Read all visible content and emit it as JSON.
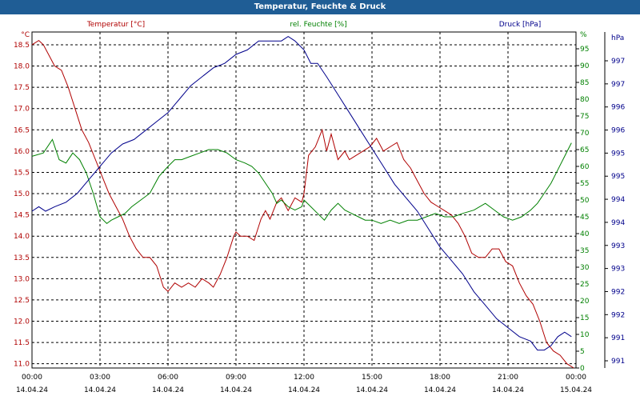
{
  "window_title": "Temperatur, Feuchte & Druck",
  "chart_data": {
    "type": "line",
    "title": "Temperatur, Feuchte & Druck",
    "grid": true,
    "x_ticks": [
      {
        "time": "00:00",
        "date": "14.04.24"
      },
      {
        "time": "03:00",
        "date": "14.04.24"
      },
      {
        "time": "06:00",
        "date": "14.04.24"
      },
      {
        "time": "09:00",
        "date": "14.04.24"
      },
      {
        "time": "12:00",
        "date": "14.04.24"
      },
      {
        "time": "15:00",
        "date": "14.04.24"
      },
      {
        "time": "18:00",
        "date": "14.04.24"
      },
      {
        "time": "21:00",
        "date": "14.04.24"
      },
      {
        "time": "00:00",
        "date": "15.04.24"
      }
    ],
    "x_range_hours": [
      0,
      24
    ],
    "axes": {
      "temperature": {
        "label": "Temperatur [°C]",
        "unit": "°C",
        "color": "#b00000",
        "ylim": [
          10.9,
          18.8
        ],
        "ticks": [
          "11.0",
          "11.5",
          "12.0",
          "12.5",
          "13.0",
          "13.5",
          "14.0",
          "14.5",
          "15.0",
          "15.5",
          "16.0",
          "16.5",
          "17.0",
          "17.5",
          "18.0",
          "18.5"
        ]
      },
      "humidity": {
        "label": "rel. Feuchte [%]",
        "unit": "%",
        "color": "#008000",
        "ylim": [
          0,
          100
        ],
        "ticks": [
          "0",
          "5",
          "10",
          "15",
          "20",
          "25",
          "30",
          "35",
          "40",
          "45",
          "50",
          "55",
          "60",
          "65",
          "70",
          "75",
          "80",
          "85",
          "90",
          "95"
        ]
      },
      "pressure": {
        "label": "Druck [hPa]",
        "unit": "hPa",
        "color": "#00008b",
        "ylim": [
          990.5,
          998.0
        ],
        "ticks": [
          "991",
          "991",
          "992",
          "992",
          "993",
          "993",
          "994",
          "994",
          "995",
          "995",
          "996",
          "996",
          "997",
          "997"
        ]
      }
    },
    "series": [
      {
        "name": "Temperatur [°C]",
        "axis": "temperature",
        "color": "#b00000",
        "x": [
          0,
          0.3,
          0.5,
          0.8,
          1.0,
          1.3,
          1.6,
          1.9,
          2.2,
          2.5,
          2.8,
          3.1,
          3.4,
          3.7,
          4.0,
          4.3,
          4.6,
          4.9,
          5.2,
          5.5,
          5.8,
          6.0,
          6.3,
          6.6,
          6.9,
          7.2,
          7.5,
          7.8,
          8.0,
          8.3,
          8.6,
          8.9,
          9.0,
          9.2,
          9.5,
          9.8,
          10.1,
          10.3,
          10.5,
          10.8,
          11.0,
          11.3,
          11.6,
          11.9,
          12.0,
          12.2,
          12.5,
          12.8,
          13.0,
          13.2,
          13.5,
          13.8,
          14.0,
          14.3,
          14.6,
          14.9,
          15.2,
          15.5,
          15.8,
          16.1,
          16.4,
          16.7,
          17.0,
          17.3,
          17.6,
          17.9,
          18.2,
          18.5,
          18.8,
          19.1,
          19.4,
          19.7,
          20.0,
          20.3,
          20.6,
          20.9,
          21.2,
          21.5,
          21.8,
          22.1,
          22.4,
          22.7,
          23.0,
          23.3,
          23.6,
          23.9
        ],
        "y": [
          18.5,
          18.6,
          18.5,
          18.2,
          18.0,
          17.9,
          17.5,
          17.0,
          16.5,
          16.2,
          15.8,
          15.4,
          15.0,
          14.7,
          14.4,
          14.0,
          13.7,
          13.5,
          13.5,
          13.3,
          12.8,
          12.7,
          12.9,
          12.8,
          12.9,
          12.8,
          13.0,
          12.9,
          12.8,
          13.1,
          13.5,
          14.0,
          14.1,
          14.0,
          14.0,
          13.9,
          14.4,
          14.6,
          14.4,
          14.8,
          14.9,
          14.6,
          14.9,
          14.8,
          15.0,
          15.9,
          16.1,
          16.5,
          16.0,
          16.4,
          15.8,
          16.0,
          15.8,
          15.9,
          16.0,
          16.1,
          16.3,
          16.0,
          16.1,
          16.2,
          15.8,
          15.6,
          15.3,
          15.0,
          14.8,
          14.7,
          14.6,
          14.5,
          14.3,
          14.0,
          13.6,
          13.5,
          13.5,
          13.7,
          13.7,
          13.4,
          13.3,
          12.9,
          12.6,
          12.4,
          12.0,
          11.5,
          11.3,
          11.2,
          11.0,
          10.9
        ]
      },
      {
        "name": "rel. Feuchte [%]",
        "axis": "humidity",
        "color": "#008000",
        "x": [
          0,
          0.5,
          0.9,
          1.0,
          1.2,
          1.5,
          1.8,
          2.1,
          2.4,
          2.7,
          3.0,
          3.3,
          3.5,
          3.8,
          4.1,
          4.4,
          4.8,
          5.2,
          5.6,
          6.0,
          6.3,
          6.6,
          7.0,
          7.4,
          7.8,
          8.2,
          8.6,
          9.0,
          9.4,
          9.7,
          10.0,
          10.3,
          10.6,
          10.8,
          11.0,
          11.3,
          11.6,
          11.9,
          12.0,
          12.3,
          12.6,
          12.9,
          13.2,
          13.5,
          13.8,
          14.1,
          14.4,
          14.7,
          15.0,
          15.4,
          15.8,
          16.2,
          16.6,
          17.0,
          17.4,
          17.8,
          18.2,
          18.6,
          19.0,
          19.5,
          20.0,
          20.4,
          20.8,
          21.2,
          21.6,
          22.0,
          22.3,
          22.6,
          22.9,
          23.2,
          23.5,
          23.8
        ],
        "y": [
          63,
          64,
          68,
          66,
          62,
          61,
          64,
          62,
          58,
          52,
          45,
          43,
          44,
          45,
          46,
          48,
          50,
          52,
          57,
          60,
          62,
          62,
          63,
          64,
          65,
          65,
          64,
          62,
          61,
          60,
          58,
          55,
          52,
          49,
          50,
          48,
          47,
          48,
          50,
          48,
          46,
          44,
          47,
          49,
          47,
          46,
          45,
          44,
          44,
          43,
          44,
          43,
          44,
          44,
          45,
          46,
          45,
          45,
          46,
          47,
          49,
          47,
          45,
          44,
          45,
          47,
          49,
          52,
          55,
          59,
          63,
          67
        ]
      },
      {
        "name": "Druck [hPa]",
        "axis": "pressure",
        "color": "#00008b",
        "x": [
          0,
          0.3,
          0.6,
          1.0,
          1.5,
          2.0,
          2.5,
          3.0,
          3.5,
          4.0,
          4.5,
          5.0,
          5.5,
          6.0,
          6.5,
          7.0,
          7.5,
          8.0,
          8.5,
          9.0,
          9.5,
          10.0,
          10.5,
          11.0,
          11.3,
          11.6,
          12.0,
          12.3,
          12.6,
          13.0,
          13.5,
          14.0,
          14.5,
          15.0,
          15.5,
          16.0,
          16.5,
          17.0,
          17.5,
          18.0,
          18.5,
          19.0,
          19.5,
          20.0,
          20.5,
          21.0,
          21.5,
          22.0,
          22.3,
          22.6,
          22.9,
          23.2,
          23.5,
          23.8
        ],
        "y": [
          994.0,
          994.1,
          994.0,
          994.1,
          994.2,
          994.4,
          994.7,
          995.0,
          995.3,
          995.5,
          995.6,
          995.8,
          996.0,
          996.2,
          996.5,
          996.8,
          997.0,
          997.2,
          997.3,
          997.5,
          997.6,
          997.8,
          997.8,
          997.8,
          997.9,
          997.8,
          997.6,
          997.3,
          997.3,
          997.0,
          996.6,
          996.2,
          995.8,
          995.4,
          995.0,
          994.6,
          994.3,
          994.0,
          993.6,
          993.2,
          992.9,
          992.6,
          992.2,
          991.9,
          991.6,
          991.4,
          991.2,
          991.1,
          990.9,
          990.9,
          991.0,
          991.2,
          991.3,
          991.2
        ]
      }
    ]
  }
}
